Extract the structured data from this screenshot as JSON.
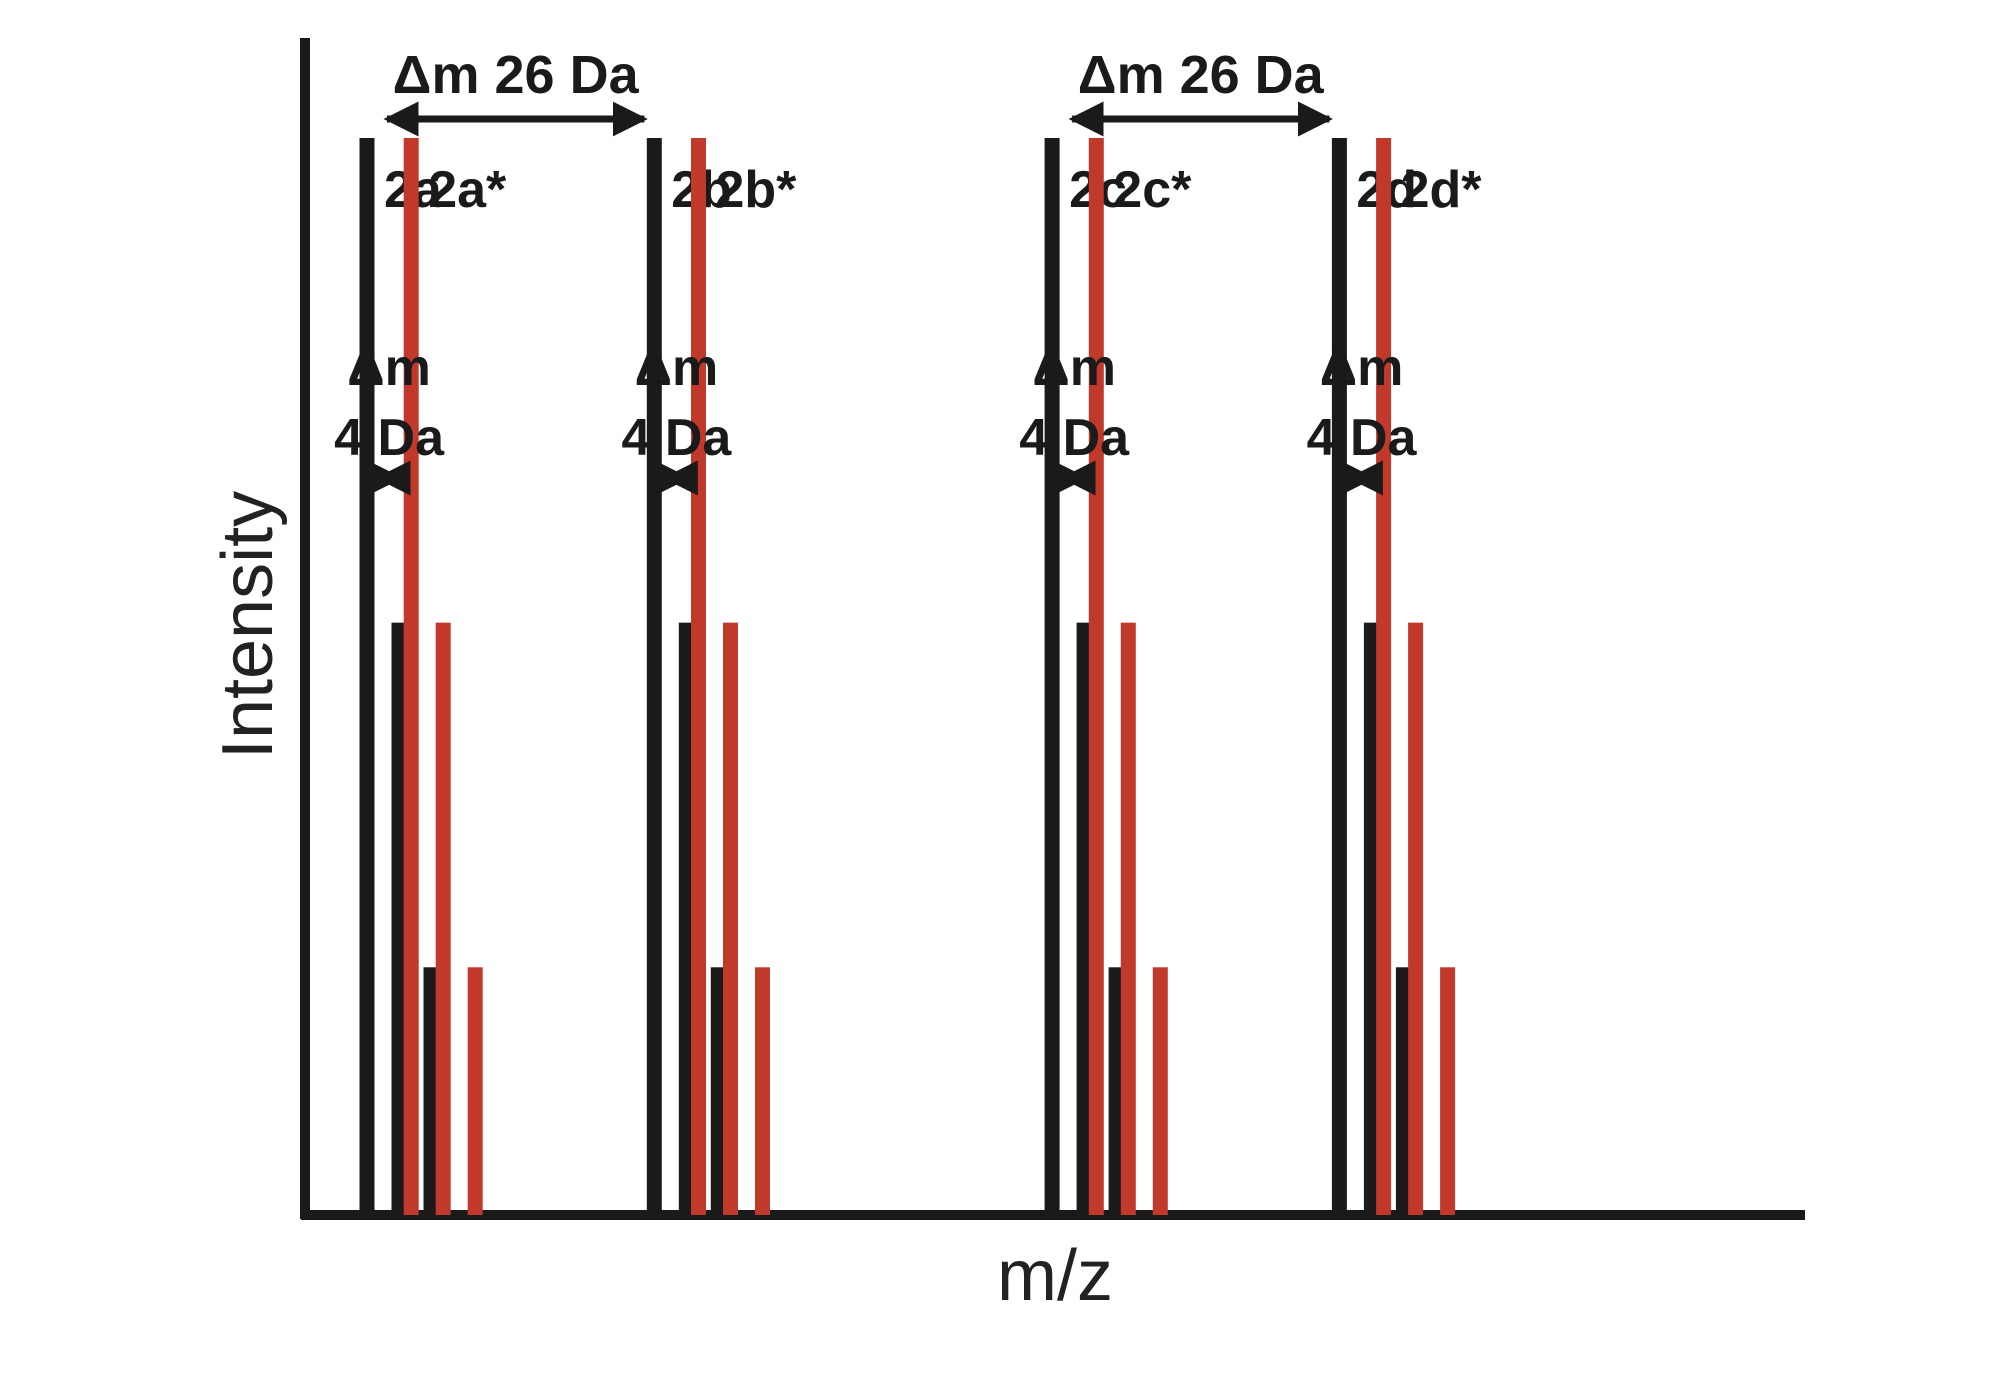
{
  "chart_data": {
    "type": "bar",
    "xlabel": "m/z",
    "ylabel": "Intensity",
    "grid": false,
    "colors": {
      "unlabeled": "#1a1a1a",
      "labeled": "#c0392b"
    },
    "peak_groups": [
      {
        "label": "2a",
        "series": "unlabeled",
        "mz": 0,
        "peaks": [
          1.0,
          0.55,
          0.23
        ]
      },
      {
        "label": "2a*",
        "series": "labeled",
        "mz": 4,
        "peaks": [
          1.0,
          0.55,
          0.23
        ]
      },
      {
        "label": "2b",
        "series": "unlabeled",
        "mz": 26,
        "peaks": [
          1.0,
          0.55,
          0.23
        ]
      },
      {
        "label": "2b*",
        "series": "labeled",
        "mz": 30,
        "peaks": [
          1.0,
          0.55,
          0.23
        ]
      },
      {
        "label": "2c",
        "series": "unlabeled",
        "mz": 62,
        "peaks": [
          1.0,
          0.55,
          0.23
        ]
      },
      {
        "label": "2c*",
        "series": "labeled",
        "mz": 66,
        "peaks": [
          1.0,
          0.55,
          0.23
        ]
      },
      {
        "label": "2d",
        "series": "unlabeled",
        "mz": 88,
        "peaks": [
          1.0,
          0.55,
          0.23
        ]
      },
      {
        "label": "2d*",
        "series": "labeled",
        "mz": 92,
        "peaks": [
          1.0,
          0.55,
          0.23
        ]
      }
    ],
    "annotations": [
      {
        "type": "span26",
        "text": "Δm 26 Da",
        "from": "2a",
        "to": "2b"
      },
      {
        "type": "span26",
        "text": "Δm 26 Da",
        "from": "2c",
        "to": "2d"
      },
      {
        "type": "span4",
        "line1": "Δm",
        "line2": "4 Da",
        "from": "2a",
        "to": "2a*"
      },
      {
        "type": "span4",
        "line1": "Δm",
        "line2": "4 Da",
        "from": "2b",
        "to": "2b*"
      },
      {
        "type": "span4",
        "line1": "Δm",
        "line2": "4 Da",
        "from": "2c",
        "to": "2c*"
      },
      {
        "type": "span4",
        "line1": "Δm",
        "line2": "4 Da",
        "from": "2d",
        "to": "2d*"
      }
    ]
  }
}
